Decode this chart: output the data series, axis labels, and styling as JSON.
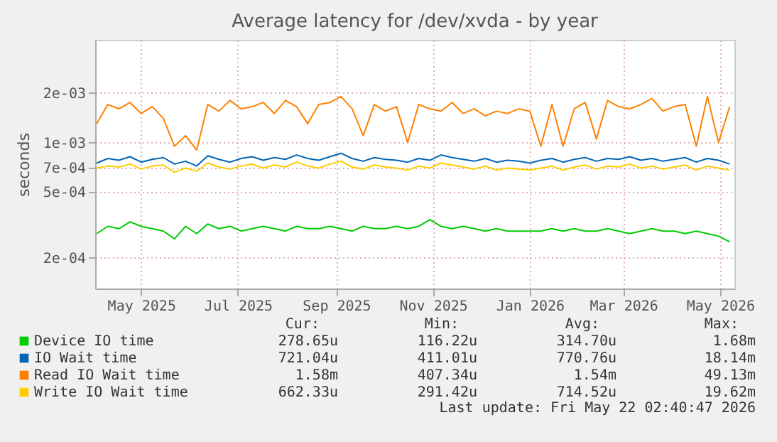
{
  "chart_data": {
    "type": "line",
    "title": "Average latency for /dev/xvda - by year",
    "ylabel": "seconds",
    "x": [
      "2025-04-03",
      "2025-04-10",
      "2025-04-17",
      "2025-04-24",
      "2025-05-01",
      "2025-05-08",
      "2025-05-15",
      "2025-05-22",
      "2025-05-29",
      "2025-06-05",
      "2025-06-12",
      "2025-06-19",
      "2025-06-26",
      "2025-07-03",
      "2025-07-10",
      "2025-07-17",
      "2025-07-24",
      "2025-07-31",
      "2025-08-07",
      "2025-08-14",
      "2025-08-21",
      "2025-08-28",
      "2025-09-04",
      "2025-09-11",
      "2025-09-18",
      "2025-09-25",
      "2025-10-02",
      "2025-10-09",
      "2025-10-16",
      "2025-10-23",
      "2025-10-30",
      "2025-11-06",
      "2025-11-13",
      "2025-11-20",
      "2025-11-27",
      "2025-12-04",
      "2025-12-11",
      "2025-12-18",
      "2025-12-25",
      "2026-01-01",
      "2026-01-08",
      "2026-01-15",
      "2026-01-22",
      "2026-01-29",
      "2026-02-05",
      "2026-02-12",
      "2026-02-19",
      "2026-02-26",
      "2026-03-05",
      "2026-03-12",
      "2026-03-19",
      "2026-03-26",
      "2026-04-02",
      "2026-04-09",
      "2026-04-16",
      "2026-04-23",
      "2026-04-30",
      "2026-05-07"
    ],
    "series": [
      {
        "name": "Device IO time",
        "color": "#00cc00",
        "values": [
          0.00028,
          0.00031,
          0.0003,
          0.00033,
          0.00031,
          0.0003,
          0.00029,
          0.00026,
          0.00031,
          0.00028,
          0.00032,
          0.0003,
          0.00031,
          0.00029,
          0.0003,
          0.00031,
          0.0003,
          0.00029,
          0.00031,
          0.0003,
          0.0003,
          0.00031,
          0.0003,
          0.00029,
          0.00031,
          0.0003,
          0.0003,
          0.00031,
          0.0003,
          0.00031,
          0.00034,
          0.00031,
          0.0003,
          0.00031,
          0.0003,
          0.00029,
          0.0003,
          0.00029,
          0.00029,
          0.00029,
          0.00029,
          0.0003,
          0.00029,
          0.0003,
          0.00029,
          0.00029,
          0.0003,
          0.00029,
          0.00028,
          0.00029,
          0.0003,
          0.00029,
          0.00029,
          0.00028,
          0.00029,
          0.00028,
          0.00027,
          0.00025
        ]
      },
      {
        "name": "IO Wait time",
        "color": "#0066b3",
        "values": [
          0.00075,
          0.0008,
          0.00078,
          0.00082,
          0.00076,
          0.00079,
          0.00081,
          0.00074,
          0.00077,
          0.00072,
          0.00083,
          0.00079,
          0.00076,
          0.0008,
          0.00082,
          0.00078,
          0.00081,
          0.00079,
          0.00084,
          0.0008,
          0.00078,
          0.00082,
          0.00086,
          0.0008,
          0.00077,
          0.00081,
          0.00079,
          0.00078,
          0.00076,
          0.0008,
          0.00078,
          0.00084,
          0.00081,
          0.00079,
          0.00077,
          0.0008,
          0.00076,
          0.00078,
          0.00077,
          0.00075,
          0.00078,
          0.0008,
          0.00076,
          0.00079,
          0.00081,
          0.00077,
          0.0008,
          0.00079,
          0.00082,
          0.00078,
          0.0008,
          0.00077,
          0.00079,
          0.00081,
          0.00076,
          0.0008,
          0.00078,
          0.00074
        ]
      },
      {
        "name": "Read IO Wait time",
        "color": "#ff8000",
        "values": [
          0.0013,
          0.0017,
          0.0016,
          0.00175,
          0.0015,
          0.00165,
          0.0014,
          0.00095,
          0.0011,
          0.0009,
          0.0017,
          0.00155,
          0.0018,
          0.0016,
          0.00165,
          0.00175,
          0.0015,
          0.0018,
          0.00165,
          0.0013,
          0.0017,
          0.00175,
          0.0019,
          0.0016,
          0.0011,
          0.0017,
          0.00155,
          0.00165,
          0.001,
          0.0017,
          0.0016,
          0.00155,
          0.00175,
          0.0015,
          0.0016,
          0.00145,
          0.00155,
          0.0015,
          0.0016,
          0.00155,
          0.00095,
          0.0017,
          0.00095,
          0.0016,
          0.00175,
          0.00105,
          0.0018,
          0.00165,
          0.0016,
          0.0017,
          0.00185,
          0.00155,
          0.00165,
          0.0017,
          0.00095,
          0.0019,
          0.001,
          0.00165
        ]
      },
      {
        "name": "Write IO Wait time",
        "color": "#ffcc00",
        "values": [
          0.0007,
          0.00072,
          0.00071,
          0.00074,
          0.00069,
          0.00072,
          0.00073,
          0.00066,
          0.0007,
          0.00067,
          0.00075,
          0.00071,
          0.00069,
          0.00072,
          0.00074,
          0.0007,
          0.00073,
          0.00071,
          0.00076,
          0.00072,
          0.0007,
          0.00074,
          0.00077,
          0.00071,
          0.00069,
          0.00073,
          0.00071,
          0.0007,
          0.00068,
          0.00072,
          0.0007,
          0.00075,
          0.00073,
          0.00071,
          0.00069,
          0.00072,
          0.00068,
          0.0007,
          0.00069,
          0.00068,
          0.0007,
          0.00072,
          0.00068,
          0.00071,
          0.00073,
          0.00069,
          0.00072,
          0.00071,
          0.00074,
          0.0007,
          0.00072,
          0.00069,
          0.00071,
          0.00073,
          0.00068,
          0.00072,
          0.0007,
          0.00068
        ]
      }
    ],
    "log": "y",
    "xlim": [
      "2025-04-02",
      "2026-05-10"
    ],
    "xticks": [
      {
        "value": "2025-05-01",
        "label": "May 2025"
      },
      {
        "value": "2025-07-01",
        "label": "Jul 2025"
      },
      {
        "value": "2025-09-01",
        "label": "Sep 2025"
      },
      {
        "value": "2025-11-01",
        "label": "Nov 2025"
      },
      {
        "value": "2026-01-01",
        "label": "Jan 2026"
      },
      {
        "value": "2026-03-01",
        "label": "Mar 2026"
      },
      {
        "value": "2026-05-01",
        "label": "May 2026"
      }
    ],
    "ylim": [
      0.00013,
      0.0042
    ],
    "yticks": [
      {
        "value": 0.0002,
        "label": "2e-04"
      },
      {
        "value": 0.0005,
        "label": "5e-04"
      },
      {
        "value": 0.0007,
        "label": "7e-04"
      },
      {
        "value": 0.001,
        "label": "1e-03"
      },
      {
        "value": 0.002,
        "label": "2e-03"
      }
    ],
    "grid": true,
    "legend": "bottom",
    "marker": "none",
    "line_style": "solid",
    "annotations": [
      "Cur:",
      "Min:",
      "Avg:",
      "Max:",
      "278.65u",
      "116.22u",
      "314.70u",
      "1.68m",
      "721.04u",
      "411.01u",
      "770.76u",
      "18.14m",
      "1.58m",
      "407.34u",
      "1.54m",
      "49.13m",
      "662.33u",
      "291.42u",
      "714.52u",
      "19.62m",
      "Last update: Fri May 22 02:40:47 2026"
    ]
  }
}
